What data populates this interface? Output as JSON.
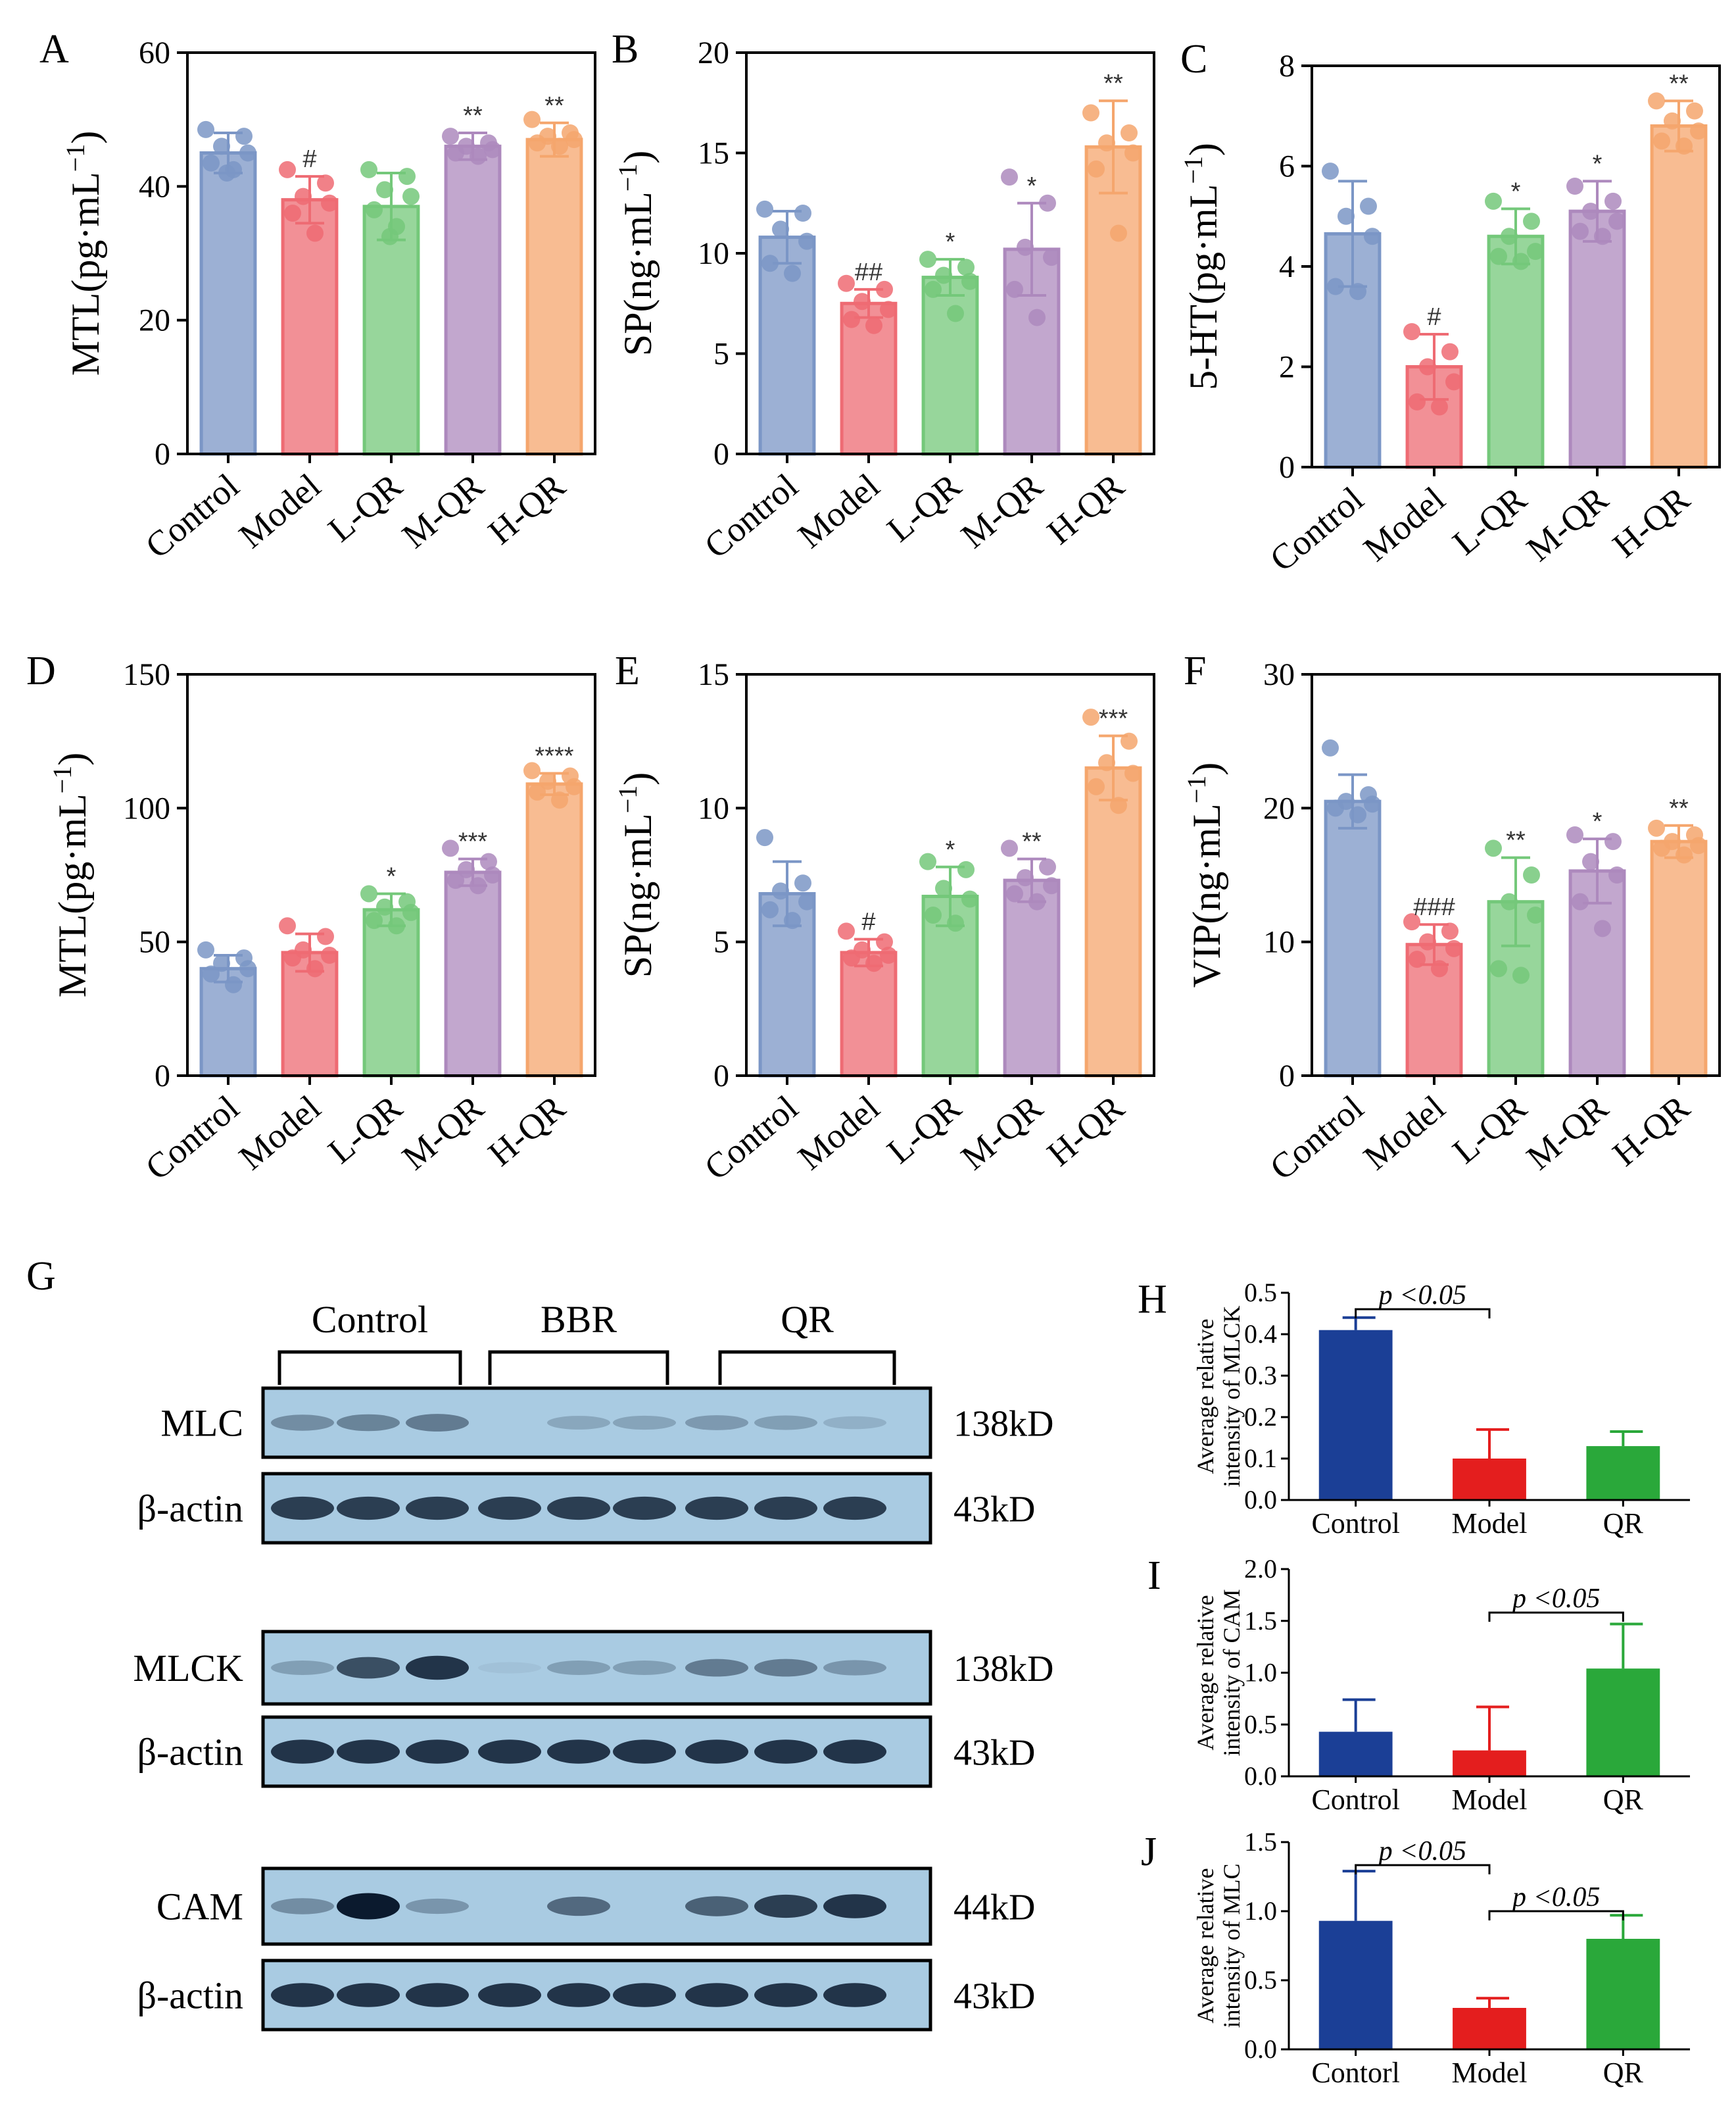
{
  "colors": {
    "control": "#7b96c6",
    "model": "#ee6b73",
    "lqr": "#74c87a",
    "mqr": "#ad89bd",
    "hqr": "#f5a66d",
    "wb_bg": "#a9cbe2",
    "blue_bar": "#1b3f96",
    "red_bar": "#e41e1e",
    "green_bar": "#2aa83a"
  },
  "categories": [
    "Control",
    "Model",
    "L-QR",
    "M-QR",
    "H-QR"
  ],
  "chart_data": [
    {
      "panel": "A",
      "type": "bar",
      "ylabel": "MTL(pg·mL",
      "ylabel_sup": "−1",
      "ylabel_close": ")",
      "ylim": [
        0,
        60
      ],
      "yticks": [
        "0",
        "20",
        "40",
        "60"
      ],
      "values": [
        45,
        38,
        37,
        46,
        47
      ],
      "errors": [
        3,
        3.5,
        5,
        2,
        2.5
      ],
      "signif": [
        "",
        "#",
        "",
        "**",
        "**"
      ],
      "points": [
        [
          48.5,
          47.5,
          46,
          45,
          43.5,
          42.5,
          42
        ],
        [
          42.5,
          40.5,
          38.5,
          37.5,
          36,
          33
        ],
        [
          42.5,
          41.5,
          39.5,
          38.5,
          36.5,
          34,
          32.5
        ],
        [
          47.5,
          46.5,
          46,
          45.5,
          45,
          44.5
        ],
        [
          50,
          48,
          47.5,
          47,
          46.5,
          46
        ]
      ]
    },
    {
      "panel": "B",
      "type": "bar",
      "ylabel": "SP(ng·mL",
      "ylabel_sup": "−1",
      "ylabel_close": ")",
      "ylim": [
        0,
        20
      ],
      "yticks": [
        "0",
        "5",
        "10",
        "15",
        "20"
      ],
      "values": [
        10.8,
        7.5,
        8.8,
        10.2,
        15.3
      ],
      "errors": [
        1.3,
        0.7,
        0.9,
        2.3,
        2.3
      ],
      "signif": [
        "",
        "##",
        "*",
        "*",
        "**"
      ],
      "points": [
        [
          12.2,
          12,
          11.2,
          10.6,
          9.5,
          9
        ],
        [
          8.5,
          8.2,
          7.6,
          7.2,
          6.7,
          6.4
        ],
        [
          9.7,
          9.3,
          8.9,
          8.6,
          8.2,
          7
        ],
        [
          13.8,
          12.5,
          10.3,
          9.8,
          8.2,
          6.8
        ],
        [
          17,
          16,
          15.5,
          15,
          14.2,
          11
        ]
      ]
    },
    {
      "panel": "C",
      "type": "bar",
      "ylabel": "5-HT(pg·mL",
      "ylabel_sup": "−1",
      "ylabel_close": ")",
      "ylim": [
        0,
        8
      ],
      "yticks": [
        "0",
        "2",
        "4",
        "6",
        "8"
      ],
      "values": [
        4.65,
        2.0,
        4.6,
        5.1,
        6.8
      ],
      "errors": [
        1.05,
        0.65,
        0.55,
        0.6,
        0.5
      ],
      "signif": [
        "",
        "#",
        "*",
        "*",
        "**"
      ],
      "points": [
        [
          5.9,
          5.2,
          5.0,
          4.6,
          3.6,
          3.5
        ],
        [
          2.7,
          2.3,
          2.0,
          1.7,
          1.3,
          1.2
        ],
        [
          5.3,
          4.9,
          4.6,
          4.3,
          4.2,
          4.1
        ],
        [
          5.6,
          5.3,
          5.1,
          4.9,
          4.7,
          4.6
        ],
        [
          7.3,
          7.1,
          6.9,
          6.7,
          6.5,
          6.4
        ]
      ]
    },
    {
      "panel": "D",
      "type": "bar",
      "ylabel": "MTL(pg·mL",
      "ylabel_sup": "−1",
      "ylabel_close": ")",
      "ylim": [
        0,
        150
      ],
      "yticks": [
        "0",
        "50",
        "100",
        "150"
      ],
      "values": [
        40,
        46,
        62,
        76,
        109
      ],
      "errors": [
        5,
        7,
        6,
        5,
        4
      ],
      "signif": [
        "",
        "",
        "*",
        "***",
        "****"
      ],
      "points": [
        [
          47,
          44,
          42,
          40,
          38,
          34
        ],
        [
          56,
          52,
          47,
          45,
          44,
          40
        ],
        [
          68,
          65,
          63,
          61,
          58,
          56
        ],
        [
          85,
          80,
          77,
          75,
          73,
          71
        ],
        [
          114,
          112,
          110,
          108,
          106,
          103
        ]
      ]
    },
    {
      "panel": "E",
      "type": "bar",
      "ylabel": "SP(ng·mL",
      "ylabel_sup": "−1",
      "ylabel_close": ")",
      "ylim": [
        0,
        15
      ],
      "yticks": [
        "0",
        "5",
        "10",
        "15"
      ],
      "values": [
        6.8,
        4.6,
        6.7,
        7.3,
        11.5
      ],
      "errors": [
        1.2,
        0.5,
        1.1,
        0.8,
        1.2
      ],
      "signif": [
        "",
        "#",
        "*",
        "**",
        "***"
      ],
      "points": [
        [
          8.9,
          7.2,
          6.9,
          6.5,
          6.2,
          5.8
        ],
        [
          5.4,
          5.0,
          4.7,
          4.5,
          4.4,
          4.2
        ],
        [
          8.0,
          7.7,
          7.0,
          6.6,
          6.0,
          5.7
        ],
        [
          8.5,
          7.8,
          7.4,
          7.1,
          6.8,
          6.5
        ],
        [
          13.4,
          12.5,
          11.7,
          11.3,
          10.8,
          10.1
        ]
      ]
    },
    {
      "panel": "F",
      "type": "bar",
      "ylabel": "VIP(ng·mL",
      "ylabel_sup": "−1",
      "ylabel_close": ")",
      "ylim": [
        0,
        30
      ],
      "yticks": [
        "0",
        "10",
        "20",
        "30"
      ],
      "values": [
        20.5,
        9.8,
        13,
        15.3,
        17.5
      ],
      "errors": [
        2,
        1.5,
        3.3,
        2.4,
        1.2
      ],
      "signif": [
        "",
        "###",
        "**",
        "*",
        "**"
      ],
      "points": [
        [
          24.5,
          21,
          20.5,
          20.3,
          20,
          19.5
        ],
        [
          11.5,
          10.8,
          10,
          9.5,
          8.7,
          8
        ],
        [
          17,
          15,
          13,
          12,
          8,
          7.5
        ],
        [
          18,
          17.5,
          16,
          15,
          13,
          11
        ],
        [
          18.5,
          18,
          17.5,
          17.2,
          17,
          16.5
        ]
      ]
    },
    {
      "panel": "H",
      "type": "bar",
      "ylabel": [
        "Average relative",
        "intensity of MLCK"
      ],
      "ylim": [
        0,
        0.5
      ],
      "yticks": [
        "0.0",
        "0.1",
        "0.2",
        "0.3",
        "0.4",
        "0.5"
      ],
      "categories": [
        "Control",
        "Model",
        "QR"
      ],
      "values": [
        0.41,
        0.1,
        0.13
      ],
      "errors": [
        0.03,
        0.07,
        0.035
      ],
      "brackets": [
        {
          "from": 0,
          "to": 1,
          "label": "p <0.05"
        }
      ]
    },
    {
      "panel": "I",
      "type": "bar",
      "ylabel": [
        "Average relative",
        "intensity of CAM"
      ],
      "ylim": [
        0,
        2.0
      ],
      "yticks": [
        "0.0",
        "0.5",
        "1.0",
        "1.5",
        "2.0"
      ],
      "categories": [
        "Control",
        "Model",
        "QR"
      ],
      "values": [
        0.43,
        0.25,
        1.04
      ],
      "errors": [
        0.31,
        0.42,
        0.43
      ],
      "brackets": [
        {
          "from": 1,
          "to": 2,
          "label": "p <0.05"
        }
      ]
    },
    {
      "panel": "J",
      "type": "bar",
      "ylabel": [
        "Average relative",
        "intensity of MLC"
      ],
      "ylim": [
        0,
        1.5
      ],
      "yticks": [
        "0.0",
        "0.5",
        "1.0",
        "1.5"
      ],
      "categories": [
        "Contorl",
        "Model",
        "QR"
      ],
      "values": [
        0.93,
        0.3,
        0.8
      ],
      "errors": [
        0.36,
        0.07,
        0.17
      ],
      "brackets": [
        {
          "from": 0,
          "to": 1,
          "label": "p <0.05"
        },
        {
          "from": 1,
          "to": 2,
          "label": "p <0.05"
        }
      ]
    }
  ],
  "western_blot": {
    "panel": "G",
    "groups": [
      "Control",
      "BBR",
      "QR"
    ],
    "blots": [
      {
        "protein": "MLC",
        "size": "138kD",
        "intensity": [
          0.35,
          0.4,
          0.45,
          0.0,
          0.2,
          0.22,
          0.28,
          0.25,
          0.15
        ]
      },
      {
        "protein": "β-actin",
        "size": "43kD",
        "intensity": [
          0.8,
          0.8,
          0.8,
          0.8,
          0.8,
          0.8,
          0.8,
          0.8,
          0.8
        ]
      },
      {
        "protein": "MLCK",
        "size": "138kD",
        "intensity": [
          0.25,
          0.7,
          0.85,
          0.05,
          0.25,
          0.25,
          0.45,
          0.45,
          0.3
        ]
      },
      {
        "protein": "β-actin",
        "size": "43kD",
        "intensity": [
          0.85,
          0.85,
          0.85,
          0.85,
          0.85,
          0.85,
          0.85,
          0.85,
          0.85
        ]
      },
      {
        "protein": "CAM",
        "size": "44kD",
        "intensity": [
          0.35,
          1.0,
          0.3,
          0.0,
          0.55,
          0.0,
          0.6,
          0.8,
          0.85
        ]
      },
      {
        "protein": "β-actin",
        "size": "43kD",
        "intensity": [
          0.85,
          0.85,
          0.85,
          0.85,
          0.85,
          0.85,
          0.85,
          0.85,
          0.85
        ]
      }
    ]
  }
}
